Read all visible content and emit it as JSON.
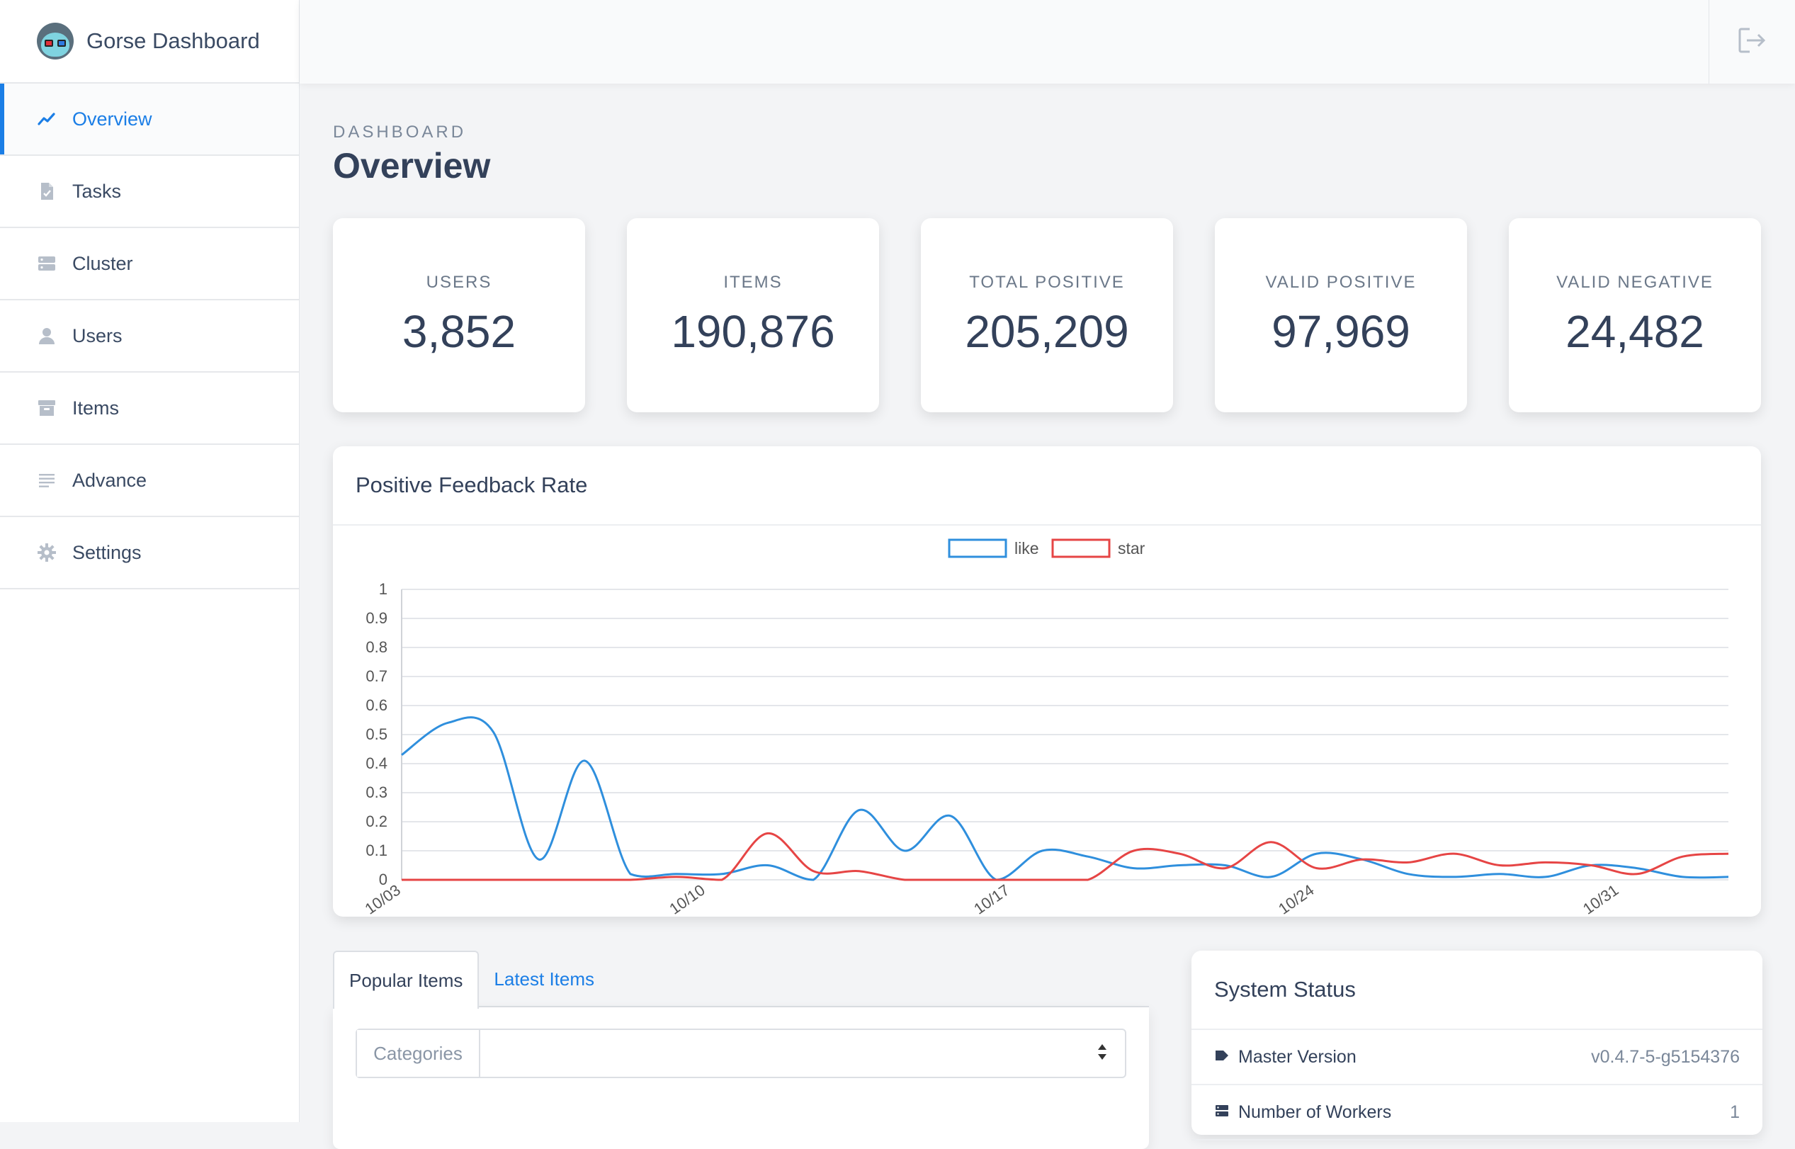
{
  "brand": {
    "title": "Gorse Dashboard"
  },
  "sidebar": {
    "items": [
      {
        "label": "Overview",
        "icon": "chart-line-icon",
        "active": true
      },
      {
        "label": "Tasks",
        "icon": "file-check-icon"
      },
      {
        "label": "Cluster",
        "icon": "server-icon"
      },
      {
        "label": "Users",
        "icon": "user-icon"
      },
      {
        "label": "Items",
        "icon": "archive-icon"
      },
      {
        "label": "Advance",
        "icon": "lines-icon"
      },
      {
        "label": "Settings",
        "icon": "gear-icon"
      }
    ]
  },
  "header": {
    "logout_icon": "sign-out-icon"
  },
  "page": {
    "eyebrow": "DASHBOARD",
    "title": "Overview"
  },
  "stats": [
    {
      "label": "USERS",
      "value": "3,852"
    },
    {
      "label": "ITEMS",
      "value": "190,876"
    },
    {
      "label": "TOTAL POSITIVE",
      "value": "205,209"
    },
    {
      "label": "VALID POSITIVE",
      "value": "97,969"
    },
    {
      "label": "VALID NEGATIVE",
      "value": "24,482"
    }
  ],
  "chart": {
    "title": "Positive Feedback Rate"
  },
  "chart_data": {
    "type": "line",
    "title": "Positive Feedback Rate",
    "xlabel": "",
    "ylabel": "",
    "ylim": [
      0,
      1
    ],
    "yticks": [
      "0",
      "0.1",
      "0.2",
      "0.3",
      "0.4",
      "0.5",
      "0.6",
      "0.7",
      "0.8",
      "0.9",
      "1"
    ],
    "xticks": [
      "10/03",
      "10/10",
      "10/17",
      "10/24",
      "10/31"
    ],
    "grid": true,
    "legend": "top-center",
    "series": [
      {
        "name": "like",
        "color": "#2f8fdd",
        "values": [
          0.43,
          0.54,
          0.51,
          0.07,
          0.41,
          0.02,
          0.02,
          0.02,
          0.05,
          0.0,
          0.24,
          0.1,
          0.22,
          0.0,
          0.1,
          0.08,
          0.04,
          0.05,
          0.05,
          0.01,
          0.09,
          0.07,
          0.02,
          0.01,
          0.02,
          0.01,
          0.05,
          0.04,
          0.01,
          0.01
        ]
      },
      {
        "name": "star",
        "color": "#e64545",
        "values": [
          0.0,
          0.0,
          0.0,
          0.0,
          0.0,
          0.0,
          0.01,
          0.0,
          0.16,
          0.03,
          0.03,
          0.0,
          0.0,
          0.0,
          0.0,
          0.0,
          0.1,
          0.09,
          0.04,
          0.13,
          0.04,
          0.07,
          0.06,
          0.09,
          0.05,
          0.06,
          0.05,
          0.02,
          0.08,
          0.09
        ]
      }
    ]
  },
  "tabs": [
    {
      "label": "Popular Items",
      "active": true
    },
    {
      "label": "Latest Items",
      "active": false
    }
  ],
  "filter": {
    "label": "Categories",
    "value": ""
  },
  "system_status": {
    "title": "System Status",
    "rows": [
      {
        "label": "Master Version",
        "value": "v0.4.7-5-g5154376",
        "icon": "tag-icon"
      },
      {
        "label": "Number of Workers",
        "value": "1",
        "icon": "server-icon"
      }
    ]
  }
}
